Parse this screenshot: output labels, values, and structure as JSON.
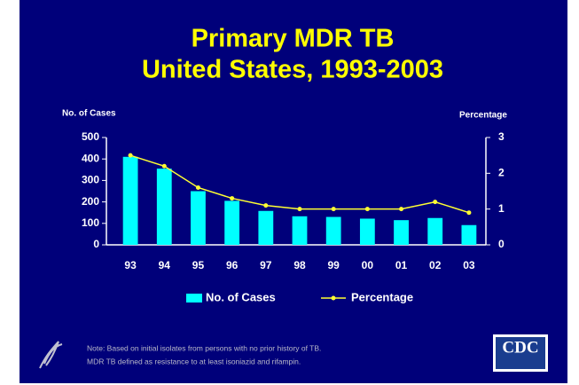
{
  "chart_data": {
    "type": "bar",
    "title": "Primary MDR TB",
    "subtitle": "United States, 1993-2003",
    "ylabel": "No. of Cases",
    "y2label": "Percentage",
    "categories": [
      "93",
      "94",
      "95",
      "96",
      "97",
      "98",
      "99",
      "00",
      "01",
      "02",
      "03"
    ],
    "series": [
      {
        "name": "No. of Cases",
        "color": "#00ffff",
        "values": [
          410,
          355,
          250,
          205,
          158,
          133,
          130,
          122,
          115,
          125,
          92
        ]
      },
      {
        "name": "Percentage",
        "color": "#ffff33",
        "type": "line",
        "axis": "y2",
        "values": [
          2.5,
          2.2,
          1.6,
          1.3,
          1.1,
          1.0,
          1.0,
          1.0,
          1.0,
          1.2,
          0.9
        ]
      }
    ],
    "ylim": [
      0,
      500
    ],
    "yticks": [
      0,
      100,
      200,
      300,
      400,
      500
    ],
    "y2lim": [
      0,
      3
    ],
    "y2ticks": [
      0,
      1,
      2,
      3
    ],
    "note": [
      "Note: Based on initial isolates from persons with no prior history of TB.",
      "MDR TB defined as resistance to at least isoniazid and rifampin."
    ]
  },
  "logo": "CDC"
}
